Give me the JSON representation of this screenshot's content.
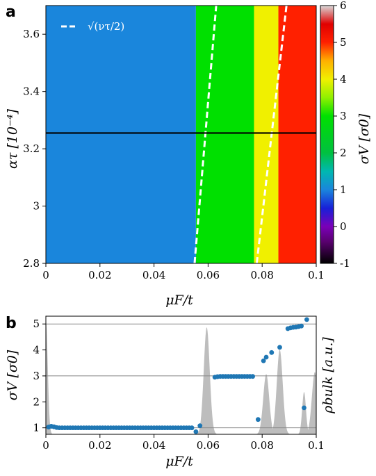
{
  "chart_data": [
    {
      "type": "heatmap",
      "panel_label": "a",
      "xlabel": "μF/t",
      "ylabel": "ατ [10⁻⁴]",
      "xlim": [
        0,
        0.1
      ],
      "ylim": [
        2.8,
        3.7
      ],
      "x_ticks": [
        "0",
        "0.02",
        "0.04",
        "0.06",
        "0.08",
        "0.1"
      ],
      "y_ticks": [
        "2.8",
        "3",
        "3.2",
        "3.4",
        "3.6"
      ],
      "horizontal_line_y": 3.255,
      "legend_entry": "√(ντ/2)",
      "colorbar": {
        "label": "σV [σ0]",
        "range": [
          -1,
          6
        ],
        "ticks": [
          "-1",
          "0",
          "1",
          "2",
          "3",
          "4",
          "5",
          "6"
        ],
        "stops": [
          {
            "v": -1,
            "color": "#000000"
          },
          {
            "v": -0.4,
            "color": "#5a0070"
          },
          {
            "v": 0,
            "color": "#7a00b8"
          },
          {
            "v": 0.5,
            "color": "#1820d8"
          },
          {
            "v": 1,
            "color": "#1a86dc"
          },
          {
            "v": 1.5,
            "color": "#00b8b0"
          },
          {
            "v": 2,
            "color": "#00c040"
          },
          {
            "v": 3,
            "color": "#00e000"
          },
          {
            "v": 3.5,
            "color": "#90f000"
          },
          {
            "v": 4,
            "color": "#f0f000"
          },
          {
            "v": 4.5,
            "color": "#ffb000"
          },
          {
            "v": 5,
            "color": "#ff2000"
          },
          {
            "v": 5.5,
            "color": "#e00000"
          },
          {
            "v": 6,
            "color": "#d8d8d8"
          }
        ]
      },
      "regions": [
        {
          "x_start": 0.0,
          "x_end": 0.0555,
          "value": 1,
          "color": "#1a86dc"
        },
        {
          "x_start": 0.0555,
          "x_end": 0.077,
          "value": 3,
          "color": "#00e000"
        },
        {
          "x_start": 0.077,
          "x_end": 0.086,
          "value": 4,
          "color": "#f0f000"
        },
        {
          "x_start": 0.086,
          "x_end": 0.1,
          "value": 5,
          "color": "#ff2000"
        }
      ],
      "dashed_lines": [
        {
          "points": [
            [
              0.055,
              2.8
            ],
            [
              0.063,
              3.7
            ]
          ],
          "color": "#ffffff"
        },
        {
          "points": [
            [
              0.078,
              2.8
            ],
            [
              0.089,
              3.7
            ]
          ],
          "color": "#ffffff"
        }
      ]
    },
    {
      "type": "scatter",
      "panel_label": "b",
      "xlabel": "μF/t",
      "ylabel": "σV [σ0]",
      "ylabel_right": "ρbulk [a.u.]",
      "xlim": [
        0,
        0.1
      ],
      "ylim": [
        0.75,
        5.3
      ],
      "x_ticks": [
        "0",
        "0.02",
        "0.04",
        "0.06",
        "0.08",
        "0.1"
      ],
      "y_ticks": [
        "1",
        "2",
        "3",
        "4",
        "5"
      ],
      "hlines": [
        1,
        3,
        5
      ],
      "point_color": "#1f77b4",
      "points": [
        [
          0.001,
          1.03
        ],
        [
          0.002,
          1.06
        ],
        [
          0.003,
          1.04
        ],
        [
          0.004,
          1.01
        ],
        [
          0.005,
          1.0
        ],
        [
          0.006,
          1.0
        ],
        [
          0.007,
          1.0
        ],
        [
          0.008,
          1.0
        ],
        [
          0.009,
          1.0
        ],
        [
          0.01,
          1.0
        ],
        [
          0.011,
          1.0
        ],
        [
          0.012,
          1.0
        ],
        [
          0.013,
          1.0
        ],
        [
          0.014,
          1.0
        ],
        [
          0.015,
          1.0
        ],
        [
          0.016,
          1.0
        ],
        [
          0.017,
          1.0
        ],
        [
          0.018,
          1.0
        ],
        [
          0.019,
          1.0
        ],
        [
          0.02,
          1.0
        ],
        [
          0.021,
          1.0
        ],
        [
          0.022,
          1.0
        ],
        [
          0.023,
          1.0
        ],
        [
          0.024,
          1.0
        ],
        [
          0.025,
          1.0
        ],
        [
          0.026,
          1.0
        ],
        [
          0.027,
          1.0
        ],
        [
          0.028,
          1.0
        ],
        [
          0.029,
          1.0
        ],
        [
          0.03,
          1.0
        ],
        [
          0.031,
          1.0
        ],
        [
          0.032,
          1.0
        ],
        [
          0.033,
          1.0
        ],
        [
          0.034,
          1.0
        ],
        [
          0.035,
          1.0
        ],
        [
          0.036,
          1.0
        ],
        [
          0.037,
          1.0
        ],
        [
          0.038,
          1.0
        ],
        [
          0.039,
          1.0
        ],
        [
          0.04,
          1.0
        ],
        [
          0.041,
          1.0
        ],
        [
          0.042,
          1.0
        ],
        [
          0.043,
          1.0
        ],
        [
          0.044,
          1.0
        ],
        [
          0.045,
          1.0
        ],
        [
          0.046,
          1.0
        ],
        [
          0.047,
          1.0
        ],
        [
          0.048,
          1.0
        ],
        [
          0.049,
          1.0
        ],
        [
          0.05,
          1.0
        ],
        [
          0.051,
          1.0
        ],
        [
          0.052,
          1.0
        ],
        [
          0.053,
          1.0
        ],
        [
          0.054,
          1.0
        ],
        [
          0.0555,
          0.85
        ],
        [
          0.057,
          1.08
        ],
        [
          0.0625,
          2.95
        ],
        [
          0.0635,
          2.97
        ],
        [
          0.0645,
          2.98
        ],
        [
          0.0655,
          2.98
        ],
        [
          0.0665,
          2.98
        ],
        [
          0.0675,
          2.98
        ],
        [
          0.0685,
          2.98
        ],
        [
          0.0695,
          2.98
        ],
        [
          0.0705,
          2.98
        ],
        [
          0.0715,
          2.98
        ],
        [
          0.0725,
          2.98
        ],
        [
          0.0735,
          2.98
        ],
        [
          0.0745,
          2.98
        ],
        [
          0.0755,
          2.98
        ],
        [
          0.0765,
          2.98
        ],
        [
          0.0785,
          1.32
        ],
        [
          0.0805,
          3.58
        ],
        [
          0.0815,
          3.72
        ],
        [
          0.0835,
          3.9
        ],
        [
          0.0865,
          4.1
        ],
        [
          0.0895,
          4.82
        ],
        [
          0.0905,
          4.85
        ],
        [
          0.0915,
          4.87
        ],
        [
          0.0925,
          4.88
        ],
        [
          0.0935,
          4.9
        ],
        [
          0.0945,
          4.92
        ],
        [
          0.0955,
          1.77
        ],
        [
          0.0965,
          5.17
        ]
      ],
      "density_peaks": [
        {
          "center": 0.0,
          "height": 5.1,
          "width": 0.0007
        },
        {
          "center": 0.0595,
          "height": 4.8,
          "width": 0.0011
        },
        {
          "center": 0.0815,
          "height": 2.7,
          "width": 0.0011
        },
        {
          "center": 0.0865,
          "height": 3.8,
          "width": 0.0011
        },
        {
          "center": 0.0955,
          "height": 1.9,
          "width": 0.0007
        },
        {
          "center": 0.0995,
          "height": 2.8,
          "width": 0.0011
        }
      ]
    }
  ]
}
